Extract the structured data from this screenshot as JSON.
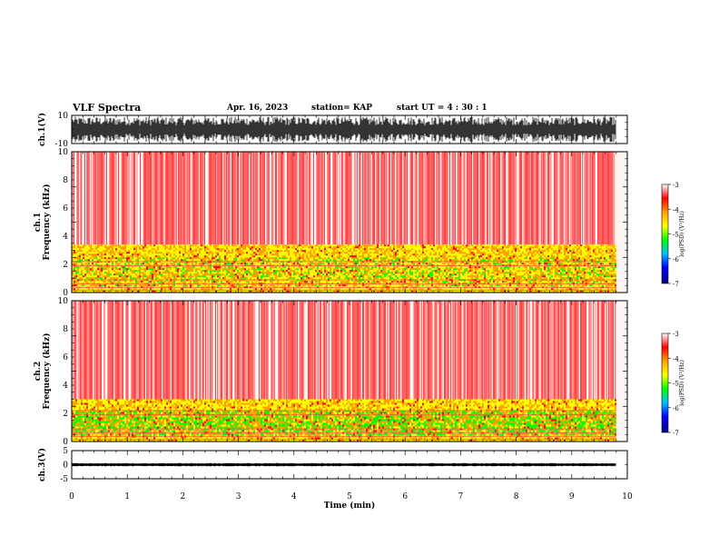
{
  "header": {
    "title": "VLF Spectra",
    "date": "Apr. 16, 2023",
    "station": "station= KAP",
    "start": "start  UT =  4 : 30 : 1"
  },
  "chart_data": [
    {
      "type": "line",
      "name": "waveform-ch1",
      "ylabel": "ch.1(V)",
      "ylim": [
        -10,
        10
      ],
      "yticks": [
        "10",
        "-10"
      ],
      "xlim": [
        0,
        10
      ],
      "fill_to_x": 9.8
    },
    {
      "type": "heatmap",
      "name": "spectrogram-ch1",
      "ylabel": [
        "ch.1",
        "Frequency (kHz)"
      ],
      "ylim": [
        0,
        10
      ],
      "yticks": [
        "0",
        "2",
        "4",
        "6",
        "8",
        "10"
      ],
      "xlim": [
        0,
        10
      ],
      "data_end_x": 9.8,
      "lower_band_top_khz": 3.4,
      "colorbar": {
        "label": "log(PSD) (V²/Hz)",
        "range": [
          -7,
          -3
        ],
        "ticks": [
          "-3",
          "-4",
          "-5",
          "-6",
          "-7"
        ]
      }
    },
    {
      "type": "heatmap",
      "name": "spectrogram-ch2",
      "ylabel": [
        "ch.2",
        "Frequency (kHz)"
      ],
      "ylim": [
        0,
        10
      ],
      "yticks": [
        "0",
        "2",
        "4",
        "6",
        "8",
        "10"
      ],
      "xlim": [
        0,
        10
      ],
      "data_end_x": 9.8,
      "lower_band_top_khz": 3.0,
      "colorbar": {
        "label": "log(PSD) (V²/Hz)",
        "range": [
          -7,
          -3
        ],
        "ticks": [
          "-3",
          "-4",
          "-5",
          "-6",
          "-7"
        ]
      }
    },
    {
      "type": "line",
      "name": "waveform-ch3",
      "ylabel": "ch.3(V)",
      "ylim": [
        -5,
        5
      ],
      "yticks": [
        "5",
        "0",
        "-5"
      ],
      "xlim": [
        0,
        10
      ],
      "band": [
        -0.5,
        0.5
      ],
      "fill_to_x": 9.8,
      "xlabel": "Time (min)",
      "xticks": [
        "0",
        "1",
        "2",
        "3",
        "4",
        "5",
        "6",
        "7",
        "8",
        "9",
        "10"
      ]
    }
  ],
  "colors": {
    "waveform": "#000000",
    "colormap": [
      "#ffffff",
      "#ff0000",
      "#ffa000",
      "#ffff00",
      "#00ff00",
      "#00c0ff",
      "#0000ff",
      "#000080"
    ]
  }
}
